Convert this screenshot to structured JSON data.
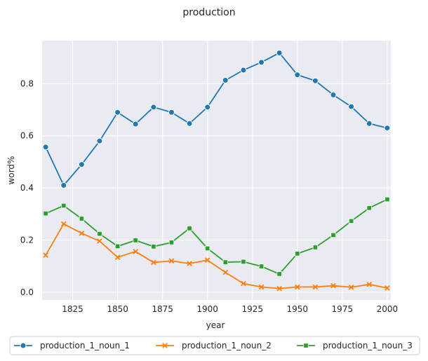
{
  "chart_data": {
    "type": "line",
    "title": "production",
    "xlabel": "year",
    "ylabel": "word%",
    "xlim": [
      1808,
      2002
    ],
    "ylim": [
      -0.03,
      0.965
    ],
    "xticks": [
      1825,
      1850,
      1875,
      1900,
      1925,
      1950,
      1975,
      2000
    ],
    "yticks": [
      0.0,
      0.2,
      0.4,
      0.6,
      0.8
    ],
    "ytick_labels": [
      "0.0",
      "0.2",
      "0.4",
      "0.6",
      "0.8"
    ],
    "grid": true,
    "legend_position": "bottom",
    "x": [
      1810,
      1820,
      1830,
      1840,
      1850,
      1860,
      1870,
      1880,
      1890,
      1900,
      1910,
      1920,
      1930,
      1940,
      1950,
      1960,
      1970,
      1980,
      1990,
      2000
    ],
    "series": [
      {
        "name": "production_1_noun_1",
        "color": "#1f77b4",
        "marker": "circle",
        "values": [
          0.557,
          0.41,
          0.49,
          0.58,
          0.69,
          0.645,
          0.71,
          0.69,
          0.647,
          0.71,
          0.813,
          0.852,
          0.882,
          0.918,
          0.834,
          0.811,
          0.757,
          0.712,
          0.647,
          0.63
        ]
      },
      {
        "name": "production_1_noun_2",
        "color": "#ff7f0e",
        "marker": "x",
        "values": [
          0.142,
          0.262,
          0.226,
          0.196,
          0.134,
          0.156,
          0.114,
          0.12,
          0.11,
          0.123,
          0.076,
          0.033,
          0.02,
          0.014,
          0.02,
          0.02,
          0.025,
          0.019,
          0.03,
          0.016
        ]
      },
      {
        "name": "production_1_noun_3",
        "color": "#2ca02c",
        "marker": "square",
        "values": [
          0.302,
          0.332,
          0.282,
          0.224,
          0.176,
          0.199,
          0.175,
          0.191,
          0.245,
          0.168,
          0.115,
          0.117,
          0.099,
          0.07,
          0.148,
          0.172,
          0.219,
          0.273,
          0.323,
          0.356
        ]
      }
    ]
  }
}
